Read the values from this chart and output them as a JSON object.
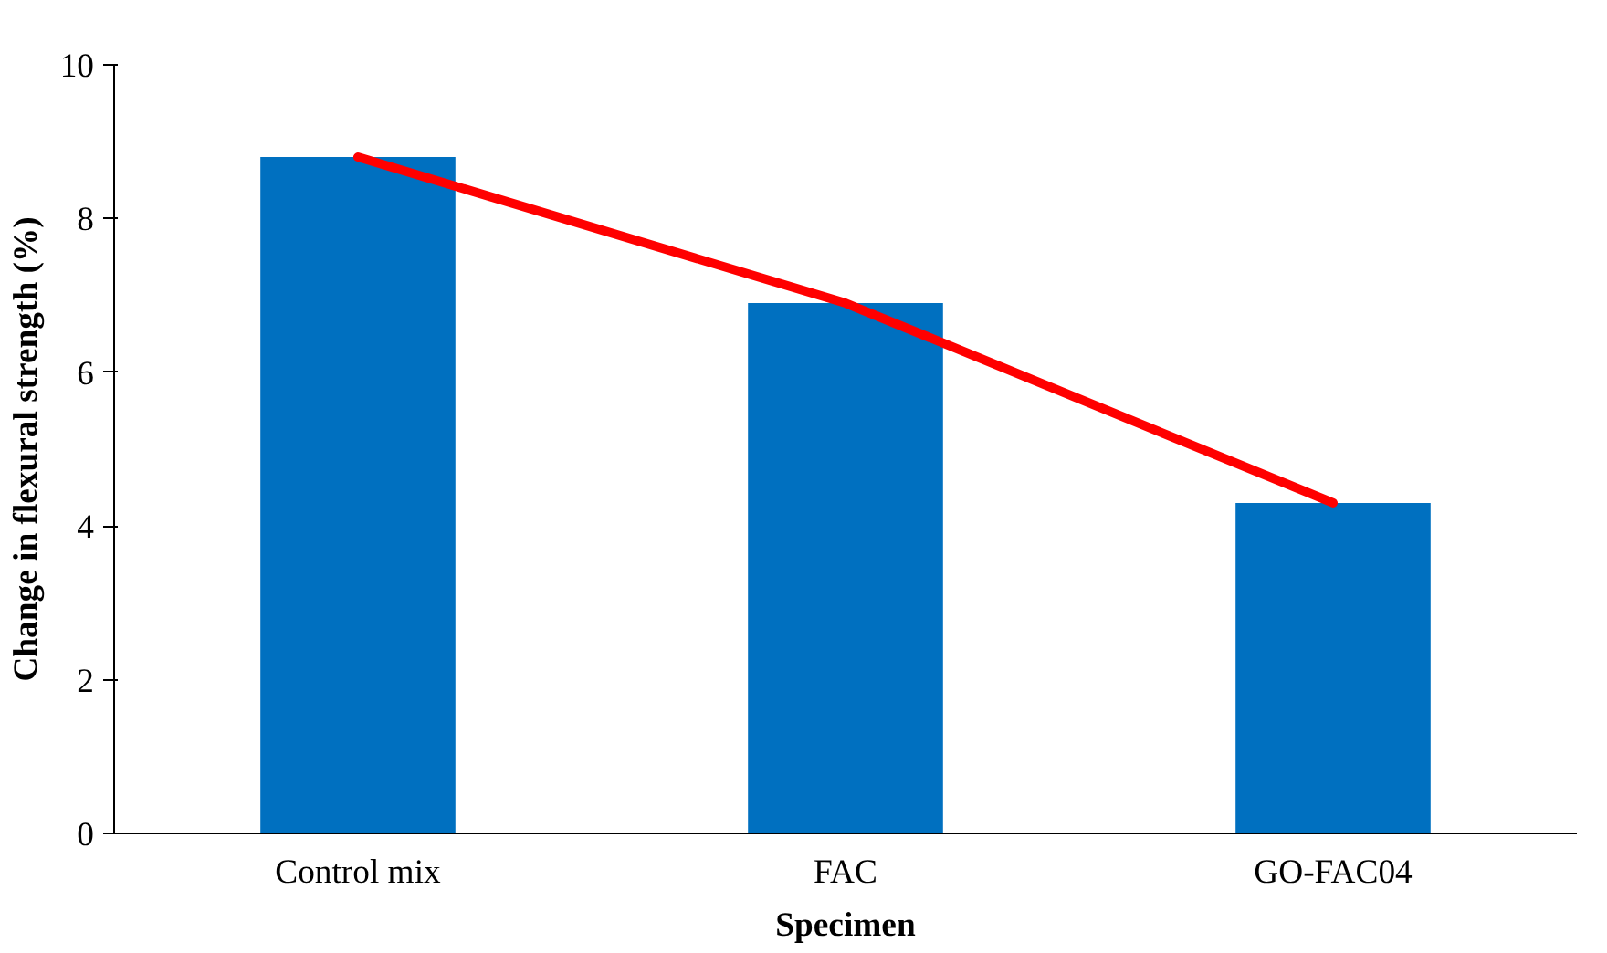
{
  "chart_data": {
    "type": "bar",
    "xlabel": "Specimen",
    "ylabel": "Change in flexural strength (%)",
    "categories": [
      "Control mix",
      "FAC",
      "GO-FAC04"
    ],
    "series": [
      {
        "color": "#0070c0",
        "values": [
          8.8,
          6.9,
          4.3
        ]
      },
      {
        "type": "line",
        "color": "#ff0000",
        "values": [
          8.8,
          6.9,
          4.3
        ]
      }
    ],
    "ylim": [
      0,
      10
    ],
    "yticks": [
      0,
      2,
      4,
      6,
      8,
      10
    ],
    "grid": false
  }
}
